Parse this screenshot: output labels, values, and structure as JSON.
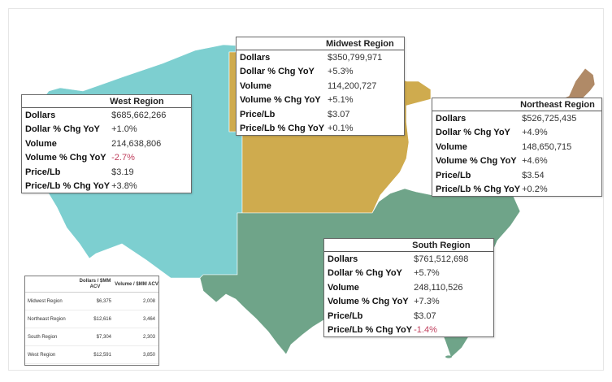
{
  "colors": {
    "west": "#7dcfd0",
    "midwest": "#cfab4e",
    "northeast": "#b08a67",
    "south": "#6fa489",
    "negative": "#c0405e"
  },
  "regions": {
    "west": {
      "title": "West Region",
      "rows": [
        {
          "label": "Dollars",
          "value": "$685,662,266"
        },
        {
          "label": "Dollar % Chg YoY",
          "value": "+1.0%"
        },
        {
          "label": "Volume",
          "value": "214,638,806"
        },
        {
          "label": "Volume % Chg YoY",
          "value": "-2.7%",
          "negative": true
        },
        {
          "label": "Price/Lb",
          "value": "$3.19"
        },
        {
          "label": "Price/Lb % Chg YoY",
          "value": "+3.8%"
        }
      ]
    },
    "midwest": {
      "title": "Midwest Region",
      "rows": [
        {
          "label": "Dollars",
          "value": "$350,799,971"
        },
        {
          "label": "Dollar % Chg YoY",
          "value": "+5.3%"
        },
        {
          "label": "Volume",
          "value": "114,200,727"
        },
        {
          "label": "Volume % Chg YoY",
          "value": "+5.1%"
        },
        {
          "label": "Price/Lb",
          "value": "$3.07"
        },
        {
          "label": "Price/Lb % Chg YoY",
          "value": "+0.1%"
        }
      ]
    },
    "northeast": {
      "title": "Northeast Region",
      "rows": [
        {
          "label": "Dollars",
          "value": "$526,725,435"
        },
        {
          "label": "Dollar % Chg YoY",
          "value": "+4.9%"
        },
        {
          "label": "Volume",
          "value": "148,650,715"
        },
        {
          "label": "Volume % Chg YoY",
          "value": "+4.6%"
        },
        {
          "label": "Price/Lb",
          "value": "$3.54"
        },
        {
          "label": "Price/Lb % Chg YoY",
          "value": "+0.2%"
        }
      ]
    },
    "south": {
      "title": "South Region",
      "rows": [
        {
          "label": "Dollars",
          "value": "$761,512,698"
        },
        {
          "label": "Dollar % Chg YoY",
          "value": "+5.7%"
        },
        {
          "label": "Volume",
          "value": "248,110,526"
        },
        {
          "label": "Volume % Chg YoY",
          "value": "+7.3%"
        },
        {
          "label": "Price/Lb",
          "value": "$3.07"
        },
        {
          "label": "Price/Lb % Chg YoY",
          "value": "-1.4%",
          "negative": true
        }
      ]
    }
  },
  "summary_table": {
    "headers": [
      "Dollars / $MM ACV",
      "Volume / $MM ACV"
    ],
    "rows": [
      {
        "region": "Midwest Region",
        "dollars": "$6,375",
        "volume": "2,008"
      },
      {
        "region": "Northeast Region",
        "dollars": "$12,616",
        "volume": "3,464"
      },
      {
        "region": "South Region",
        "dollars": "$7,304",
        "volume": "2,303"
      },
      {
        "region": "West Region",
        "dollars": "$12,591",
        "volume": "3,850"
      }
    ]
  }
}
